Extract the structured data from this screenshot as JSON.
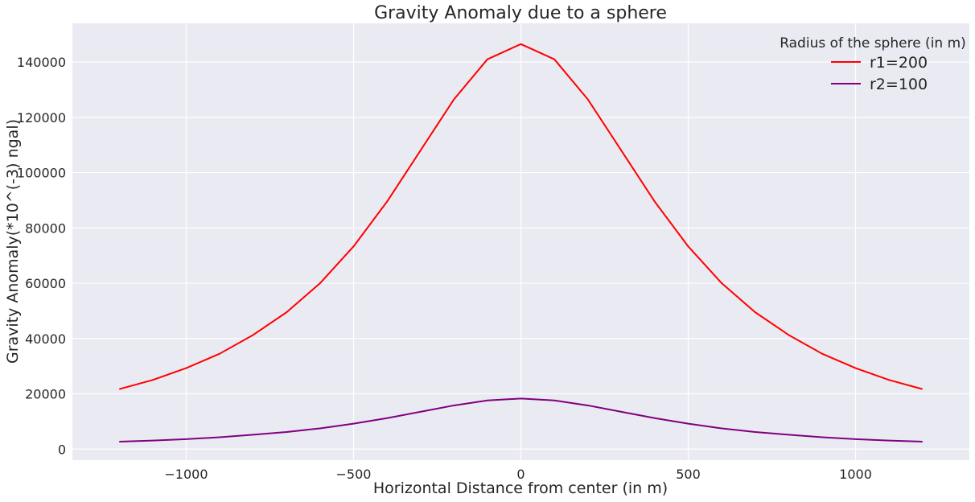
{
  "chart_data": {
    "type": "line",
    "title": "Gravity Anomaly due to a sphere",
    "xlabel": "Horizontal Distance from center (in m)",
    "ylabel": "Gravity Anomaly(*10^(-3) ngal)",
    "xlim": [
      -1340,
      1340
    ],
    "ylim": [
      -4000,
      154000
    ],
    "x_ticks": [
      -1000,
      -500,
      0,
      500,
      1000
    ],
    "x_tick_labels": [
      "−1000",
      "−500",
      "0",
      "500",
      "1000"
    ],
    "y_ticks": [
      0,
      20000,
      40000,
      60000,
      80000,
      100000,
      120000,
      140000
    ],
    "y_tick_labels": [
      "0",
      "20000",
      "40000",
      "60000",
      "80000",
      "100000",
      "120000",
      "140000"
    ],
    "grid": true,
    "legend": {
      "title": "Radius of the sphere (in m)",
      "placement": "top-right"
    },
    "x": [
      -1200,
      -1100,
      -1000,
      -900,
      -800,
      -700,
      -600,
      -500,
      -400,
      -300,
      -200,
      -100,
      0,
      100,
      200,
      300,
      400,
      500,
      600,
      700,
      800,
      900,
      1000,
      1100,
      1200
    ],
    "series": [
      {
        "name": "r1=200",
        "color": "#ff0000",
        "values": [
          21700,
          25000,
          29300,
          34500,
          41300,
          49500,
          60000,
          73300,
          89500,
          108000,
          126500,
          141000,
          146500,
          141000,
          126500,
          108000,
          89500,
          73300,
          60000,
          49500,
          41300,
          34500,
          29300,
          25000,
          21700
        ]
      },
      {
        "name": "r2=100",
        "color": "#800080",
        "values": [
          2700,
          3100,
          3600,
          4300,
          5200,
          6200,
          7500,
          9200,
          11200,
          13500,
          15800,
          17600,
          18300,
          17600,
          15800,
          13500,
          11200,
          9200,
          7500,
          6200,
          5200,
          4300,
          3600,
          3100,
          2700
        ]
      }
    ]
  }
}
